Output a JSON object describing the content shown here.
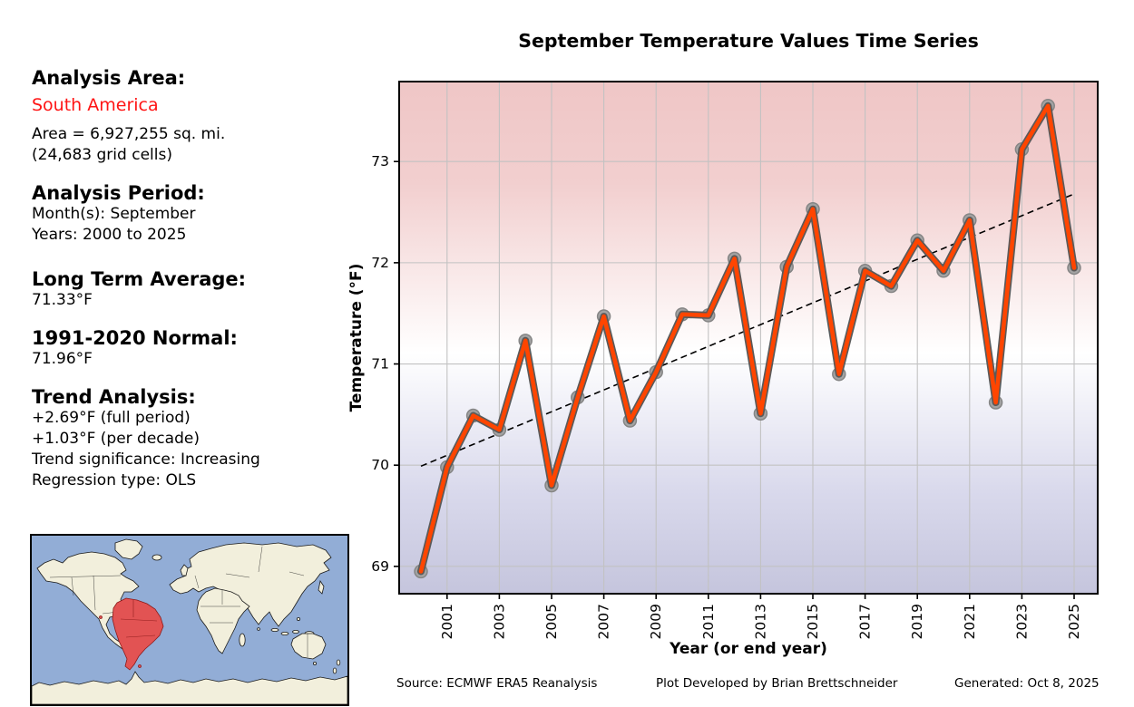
{
  "title": "September Temperature Values Time Series",
  "sidebar": {
    "analysis_area_label": "Analysis Area:",
    "analysis_area_value": "South America",
    "area_line1": "Area = 6,927,255 sq. mi.",
    "area_line2": "(24,683 grid cells)",
    "analysis_period_label": "Analysis Period:",
    "months_line": "Month(s): September",
    "years_line": "Years: 2000 to 2025",
    "long_term_avg_label": "Long Term Average:",
    "long_term_avg_value": "71.33°F",
    "normal_label": "1991-2020 Normal:",
    "normal_value": "71.96°F",
    "trend_label": "Trend Analysis:",
    "trend_full_period": "+2.69°F (full period)",
    "trend_per_decade": "+1.03°F (per decade)",
    "trend_significance": "Trend significance: Increasing",
    "regression_type": "Regression type: OLS"
  },
  "footer": {
    "source": "Source: ECMWF ERA5 Reanalysis",
    "developer": "Plot Developed by Brian Brettschneider",
    "generated": "Generated: Oct 8, 2025"
  },
  "colors": {
    "accent_red_text": "#ff1414",
    "line": "#ff4500",
    "line_outline": "#5a5a5a",
    "marker_fill": "#a3a3a3",
    "marker_edge": "#858585",
    "trend": "#000000",
    "grid": "#c2c2c2",
    "axis": "#000000",
    "bg_top": "#efc6c6",
    "bg_upper": "#f2cfcf",
    "bg_mid": "#ffffff",
    "bg_lower": "#d9d9ec",
    "bg_bottom": "#c5c5dd",
    "map_ocean": "#92add6",
    "map_land": "#f2efdc",
    "map_land_border": "#1a1a1a",
    "map_highlight": "#e25353",
    "map_highlight_border": "#8b1a1a"
  },
  "chart_data": {
    "type": "line",
    "title": "September Temperature Values Time Series",
    "xlabel": "Year (or end year)",
    "ylabel": "Temperature (°F)",
    "x": [
      2000,
      2001,
      2002,
      2003,
      2004,
      2005,
      2006,
      2007,
      2008,
      2009,
      2010,
      2011,
      2012,
      2013,
      2014,
      2015,
      2016,
      2017,
      2018,
      2019,
      2020,
      2021,
      2022,
      2023,
      2024,
      2025
    ],
    "values": [
      68.95,
      69.98,
      70.49,
      70.35,
      71.23,
      69.8,
      70.67,
      71.47,
      70.44,
      70.92,
      71.49,
      71.48,
      72.04,
      70.51,
      71.96,
      72.53,
      70.9,
      71.92,
      71.77,
      72.22,
      71.92,
      72.42,
      70.62,
      73.12,
      73.55,
      71.95
    ],
    "trend_line": {
      "start_x": 2000,
      "start_y": 69.99,
      "end_x": 2025,
      "end_y": 72.68,
      "style": "dashed",
      "description": "OLS regression trend"
    },
    "ylim": [
      68.73,
      73.79
    ],
    "yticks": [
      69,
      70,
      71,
      72,
      73
    ],
    "xticks": [
      2001,
      2003,
      2005,
      2007,
      2009,
      2011,
      2013,
      2015,
      2017,
      2019,
      2021,
      2023,
      2025
    ],
    "grid": true,
    "legend_position": "none",
    "background": "red-white-blue vertical gradient (warm high, cool low)"
  },
  "map": {
    "highlight_region": "South America",
    "caption": ""
  }
}
